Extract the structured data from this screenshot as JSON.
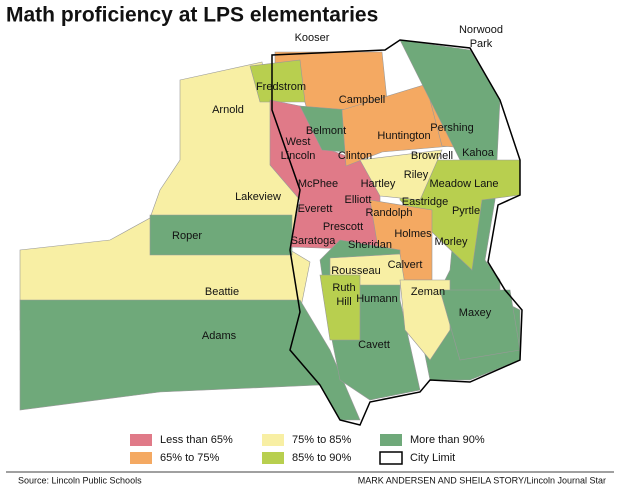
{
  "header": {
    "title": "Math proficiency at LPS elementaries"
  },
  "map": {
    "labels": [
      [
        "Kooser"
      ],
      [
        "Norwood",
        "Park"
      ],
      [
        "Fredstrom"
      ],
      [
        "Campbell"
      ],
      [
        "Arnold"
      ],
      [
        "Belmont"
      ],
      [
        "Pershing"
      ],
      [
        "Huntington"
      ],
      [
        "West",
        "Lincoln"
      ],
      [
        "Clinton"
      ],
      [
        "Brownell"
      ],
      [
        "Kahoa"
      ],
      [
        "Hartley"
      ],
      [
        "Riley"
      ],
      [
        "Meadow Lane"
      ],
      [
        "McPhee"
      ],
      [
        "Lakeview"
      ],
      [
        "Elliott"
      ],
      [
        "Eastridge"
      ],
      [
        "Everett"
      ],
      [
        "Randolph"
      ],
      [
        "Pyrtle"
      ],
      [
        "Prescott"
      ],
      [
        "Holmes"
      ],
      [
        "Roper"
      ],
      [
        "Saratoga"
      ],
      [
        "Morley"
      ],
      [
        "Sheridan"
      ],
      [
        "Calvert"
      ],
      [
        "Rousseau"
      ],
      [
        "Beattie"
      ],
      [
        "Ruth",
        "Hill"
      ],
      [
        "Humann"
      ],
      [
        "Zeman"
      ],
      [
        "Maxey"
      ],
      [
        "Adams"
      ],
      [
        "Cavett"
      ]
    ]
  },
  "legend": {
    "items": [
      {
        "label": "Less than 65%",
        "color": "#e07a88"
      },
      {
        "label": "65% to 75%",
        "color": "#f4a962"
      },
      {
        "label": "75% to 85%",
        "color": "#f8efa4"
      },
      {
        "label": "85% to 90%",
        "color": "#b8cf4f"
      },
      {
        "label": "More than 90%",
        "color": "#6fa97a"
      },
      {
        "label": "City Limit",
        "color": "#ffffff"
      }
    ]
  },
  "footer": {
    "source": "Source: Lincoln Public Schools",
    "credit": "MARK ANDERSEN AND SHEILA STORY/Lincoln Journal Star"
  }
}
